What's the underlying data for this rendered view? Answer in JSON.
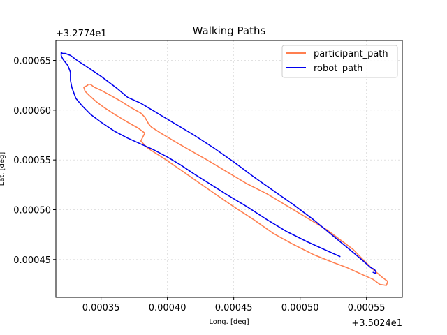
{
  "chart_data": {
    "type": "line",
    "title": "Walking Paths",
    "xlabel": "Long. [deg]",
    "ylabel": "Lat. [deg]",
    "x_offset_label": "+3.5024e1",
    "y_offset_label": "+3.2774e1",
    "xlim": [
      0.000316,
      0.000577
    ],
    "ylim": [
      0.000412,
      0.00067
    ],
    "xticks": [
      0.00035,
      0.0004,
      0.00045,
      0.0005,
      0.00055
    ],
    "xtick_labels": [
      "0.00035",
      "0.00040",
      "0.00045",
      "0.00050",
      "0.00055"
    ],
    "yticks": [
      0.00045,
      0.0005,
      0.00055,
      0.0006,
      0.00065
    ],
    "ytick_labels": [
      "0.00045",
      "0.00050",
      "0.00055",
      "0.00060",
      "0.00065"
    ],
    "grid": true,
    "legend_position": "top-right",
    "series": [
      {
        "name": "participant_path",
        "color": "#ff7f50",
        "x": [
          0.00034,
          0.000342,
          0.000345,
          0.00035,
          0.000357,
          0.000365,
          0.000372,
          0.00038,
          0.000383,
          0.000386,
          0.000388,
          0.000395,
          0.000405,
          0.000418,
          0.00043,
          0.000445,
          0.00046,
          0.000475,
          0.00049,
          0.000505,
          0.00052,
          0.00053,
          0.00054,
          0.000548,
          0.000555,
          0.000562,
          0.000566,
          0.000565,
          0.00056,
          0.000555,
          0.000545,
          0.000535,
          0.000525,
          0.00051,
          0.000495,
          0.00048,
          0.000465,
          0.00045,
          0.000438,
          0.000425,
          0.00041,
          0.000398,
          0.000385,
          0.00038,
          0.000383,
          0.000378,
          0.00037,
          0.00036,
          0.000352,
          0.000346,
          0.000341,
          0.000338,
          0.000337,
          0.00034
        ],
        "y": [
          0.000626,
          0.000626,
          0.000623,
          0.00062,
          0.000615,
          0.000609,
          0.000603,
          0.000597,
          0.000593,
          0.000586,
          0.000583,
          0.000577,
          0.000569,
          0.000559,
          0.00055,
          0.000538,
          0.000526,
          0.000516,
          0.000504,
          0.000492,
          0.00048,
          0.00047,
          0.00046,
          0.000449,
          0.00044,
          0.000432,
          0.000428,
          0.000424,
          0.000425,
          0.00043,
          0.000436,
          0.000442,
          0.000447,
          0.000455,
          0.000465,
          0.000476,
          0.00049,
          0.000503,
          0.000514,
          0.000526,
          0.00054,
          0.000551,
          0.000562,
          0.000569,
          0.000577,
          0.000582,
          0.000588,
          0.000596,
          0.000603,
          0.000609,
          0.000615,
          0.000619,
          0.000623,
          0.000625
        ]
      },
      {
        "name": "robot_path",
        "color": "#0000ee",
        "x": [
          0.00053,
          0.00052,
          0.000505,
          0.00049,
          0.000475,
          0.00046,
          0.000445,
          0.000432,
          0.00042,
          0.00041,
          0.0004,
          0.00039,
          0.00038,
          0.00037,
          0.00036,
          0.00035,
          0.000342,
          0.000336,
          0.000331,
          0.000328,
          0.000327,
          0.000327,
          0.000325,
          0.000322,
          0.000321,
          0.00032,
          0.00032,
          0.000321,
          0.000323,
          0.000325,
          0.000327,
          0.000332,
          0.00034,
          0.00035,
          0.000362,
          0.00037,
          0.000375,
          0.00038,
          0.000385,
          0.000395,
          0.000405,
          0.00042,
          0.000435,
          0.00045,
          0.000465,
          0.00048,
          0.000495,
          0.00051,
          0.00052,
          0.00053,
          0.00054,
          0.000548,
          0.000553,
          0.000556,
          0.000557,
          0.000557,
          0.000555
        ],
        "y": [
          0.000453,
          0.000459,
          0.000468,
          0.000478,
          0.00049,
          0.000503,
          0.000515,
          0.000526,
          0.000536,
          0.000545,
          0.000553,
          0.00056,
          0.000566,
          0.000572,
          0.000579,
          0.000588,
          0.000596,
          0.000604,
          0.000612,
          0.000623,
          0.00063,
          0.000638,
          0.000645,
          0.00065,
          0.000652,
          0.000655,
          0.000658,
          0.000657,
          0.000657,
          0.000656,
          0.000655,
          0.00065,
          0.000643,
          0.000634,
          0.000622,
          0.000613,
          0.00061,
          0.000607,
          0.000603,
          0.000595,
          0.000587,
          0.000575,
          0.000562,
          0.000548,
          0.000533,
          0.000519,
          0.000505,
          0.00049,
          0.000479,
          0.000468,
          0.000457,
          0.000448,
          0.000442,
          0.00044,
          0.000438,
          0.000436,
          0.000437
        ]
      }
    ]
  }
}
